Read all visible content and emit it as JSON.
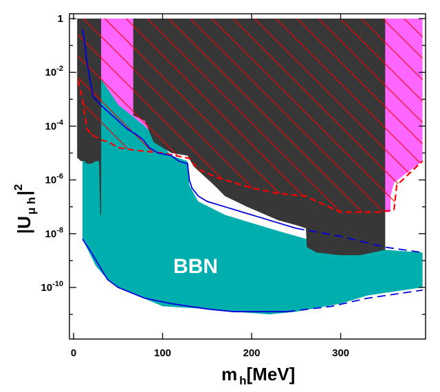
{
  "chart_data": {
    "type": "area",
    "x_scale": "linear",
    "y_scale": "log",
    "xlim": [
      0,
      392
    ],
    "ylim_exponent": [
      -12,
      0
    ],
    "x_ticks": [
      {
        "value": 0,
        "label": "0"
      },
      {
        "value": 100,
        "label": "100"
      },
      {
        "value": 200,
        "label": "200"
      },
      {
        "value": 300,
        "label": "300"
      }
    ],
    "y_ticks": [
      {
        "exp": 0,
        "label": "1",
        "mant": "",
        "sup": ""
      },
      {
        "exp": -2,
        "label": "",
        "mant": "10",
        "sup": "-2"
      },
      {
        "exp": -4,
        "label": "",
        "mant": "10",
        "sup": "-4"
      },
      {
        "exp": -6,
        "label": "",
        "mant": "10",
        "sup": "-6"
      },
      {
        "exp": -8,
        "label": "",
        "mant": "10",
        "sup": "-8"
      },
      {
        "exp": -10,
        "label": "",
        "mant": "10",
        "sup": "-10"
      }
    ],
    "xlabel": {
      "main": "m",
      "sub": "h",
      "unit": "[MeV]"
    },
    "ylabel": {
      "main": "|U",
      "sub": "μ h",
      "close": "|",
      "sup": "2"
    },
    "annotation": "BBN",
    "colors": {
      "bbn": "#00aeae",
      "excluded_dark": "#373737",
      "magenta": "#ff66ff",
      "hatch_red": "#ff0000",
      "boundary_blue": "#0000dd"
    },
    "regions": [
      {
        "name": "magenta_region",
        "color": "#ff66ff",
        "points": [
          [
            16,
            0
          ],
          [
            392,
            0
          ],
          [
            392,
            -5.3
          ],
          [
            360,
            -6.1
          ],
          [
            356,
            -6.6
          ],
          [
            356,
            -7.2
          ],
          [
            345,
            -7.2
          ],
          [
            305,
            -7.1
          ],
          [
            270,
            -6.8
          ],
          [
            250,
            -6.3
          ],
          [
            235,
            -5.2
          ],
          [
            180,
            -5.0
          ],
          [
            90,
            -4.9
          ],
          [
            50,
            -4.5
          ],
          [
            15,
            -3.9
          ]
        ]
      },
      {
        "name": "bbn_region",
        "color": "#00aeae",
        "points": [
          [
            10,
            -8.2
          ],
          [
            10,
            -3.2
          ],
          [
            20,
            -1.2
          ],
          [
            30,
            -2.2
          ],
          [
            50,
            -3.2
          ],
          [
            80,
            -4.0
          ],
          [
            110,
            -5.1
          ],
          [
            128,
            -5.3
          ],
          [
            130,
            -6.2
          ],
          [
            140,
            -6.8
          ],
          [
            170,
            -7.3
          ],
          [
            200,
            -7.6
          ],
          [
            230,
            -7.9
          ],
          [
            262,
            -8.2
          ],
          [
            300,
            -8.4
          ],
          [
            350,
            -8.6
          ],
          [
            392,
            -8.7
          ],
          [
            392,
            -10.0
          ],
          [
            350,
            -10.2
          ],
          [
            330,
            -10.3
          ],
          [
            300,
            -10.6
          ],
          [
            250,
            -10.9
          ],
          [
            220,
            -11.0
          ],
          [
            180,
            -10.9
          ],
          [
            150,
            -10.8
          ],
          [
            100,
            -10.7
          ],
          [
            50,
            -10.0
          ],
          [
            38,
            -9.7
          ],
          [
            25,
            -9.2
          ]
        ]
      },
      {
        "name": "dark_region_left",
        "color": "#373737",
        "points": [
          [
            4,
            0
          ],
          [
            31,
            0
          ],
          [
            31,
            -5.1
          ],
          [
            30,
            -5.4
          ],
          [
            28,
            -5.3
          ],
          [
            25,
            -5.3
          ],
          [
            20,
            -5.4
          ],
          [
            15,
            -5.4
          ],
          [
            12,
            -5.3
          ],
          [
            8,
            -5.3
          ],
          [
            5,
            -5.2
          ],
          [
            4,
            -5.2
          ]
        ]
      },
      {
        "name": "dark_strip",
        "color": "#373737",
        "points": [
          [
            28,
            -4.5
          ],
          [
            31,
            -4.5
          ],
          [
            31,
            -7.3
          ],
          [
            30,
            -7.3
          ]
        ]
      },
      {
        "name": "dark_region_main",
        "color": "#373737",
        "points": [
          [
            67,
            0
          ],
          [
            350,
            0
          ],
          [
            350,
            -8.6
          ],
          [
            322,
            -8.8
          ],
          [
            300,
            -8.8
          ],
          [
            273,
            -8.7
          ],
          [
            262,
            -8.5
          ],
          [
            261,
            -7.8
          ],
          [
            252,
            -7.7
          ],
          [
            230,
            -7.5
          ],
          [
            195,
            -7.0
          ],
          [
            170,
            -6.6
          ],
          [
            158,
            -6.2
          ],
          [
            135,
            -5.5
          ],
          [
            128,
            -5.1
          ],
          [
            110,
            -5.0
          ],
          [
            90,
            -4.6
          ],
          [
            80,
            -3.8
          ],
          [
            67,
            -3.6
          ]
        ]
      }
    ],
    "hatch_boundary": {
      "name": "hatched_excluded_region",
      "color": "#ff0000",
      "points": [
        [
          5,
          -2.3
        ],
        [
          10,
          -3.0
        ],
        [
          15,
          -4.1
        ],
        [
          20,
          -4.3
        ],
        [
          30,
          -4.5
        ],
        [
          40,
          -4.6
        ],
        [
          50,
          -4.8
        ],
        [
          70,
          -4.9
        ],
        [
          100,
          -5.0
        ],
        [
          130,
          -5.2
        ],
        [
          140,
          -5.6
        ],
        [
          160,
          -5.9
        ],
        [
          180,
          -6.1
        ],
        [
          200,
          -6.3
        ],
        [
          230,
          -6.5
        ],
        [
          260,
          -6.6
        ],
        [
          300,
          -7.2
        ],
        [
          345,
          -7.2
        ],
        [
          360,
          -7.1
        ],
        [
          363,
          -6.2
        ],
        [
          392,
          -5.3
        ],
        [
          392,
          0
        ],
        [
          5,
          0
        ]
      ]
    },
    "lines": [
      {
        "name": "blue_upper_boundary",
        "color": "#0000dd",
        "style": "solid",
        "points": [
          [
            10,
            -0.4
          ],
          [
            13,
            -1.0
          ],
          [
            15,
            -1.6
          ],
          [
            18,
            -2.2
          ],
          [
            22,
            -2.9
          ],
          [
            30,
            -3.2
          ],
          [
            40,
            -3.5
          ],
          [
            50,
            -3.8
          ],
          [
            60,
            -4.1
          ],
          [
            70,
            -4.3
          ],
          [
            78,
            -4.5
          ],
          [
            85,
            -4.8
          ],
          [
            95,
            -5.0
          ],
          [
            110,
            -5.1
          ],
          [
            118,
            -5.3
          ],
          [
            128,
            -5.4
          ],
          [
            130,
            -6.0
          ],
          [
            133,
            -6.3
          ],
          [
            140,
            -6.6
          ],
          [
            150,
            -6.8
          ],
          [
            170,
            -7.0
          ],
          [
            190,
            -7.2
          ],
          [
            210,
            -7.4
          ],
          [
            230,
            -7.6
          ],
          [
            250,
            -7.8
          ]
        ]
      },
      {
        "name": "blue_upper_boundary_dashed",
        "color": "#0000dd",
        "style": "dashed",
        "points": [
          [
            250,
            -7.8
          ],
          [
            300,
            -8.1
          ],
          [
            350,
            -8.5
          ],
          [
            392,
            -8.7
          ]
        ]
      },
      {
        "name": "blue_lower_boundary",
        "color": "#0000dd",
        "style": "solid",
        "points": [
          [
            10,
            -8.2
          ],
          [
            20,
            -8.7
          ],
          [
            38,
            -9.7
          ],
          [
            50,
            -10.0
          ],
          [
            80,
            -10.4
          ],
          [
            110,
            -10.6
          ],
          [
            150,
            -10.8
          ],
          [
            180,
            -10.9
          ],
          [
            210,
            -10.9
          ],
          [
            240,
            -10.9
          ]
        ]
      },
      {
        "name": "blue_lower_boundary_dashed",
        "color": "#0000dd",
        "style": "dashed",
        "points": [
          [
            240,
            -10.9
          ],
          [
            290,
            -10.7
          ],
          [
            330,
            -10.4
          ],
          [
            392,
            -10.1
          ]
        ]
      }
    ]
  }
}
